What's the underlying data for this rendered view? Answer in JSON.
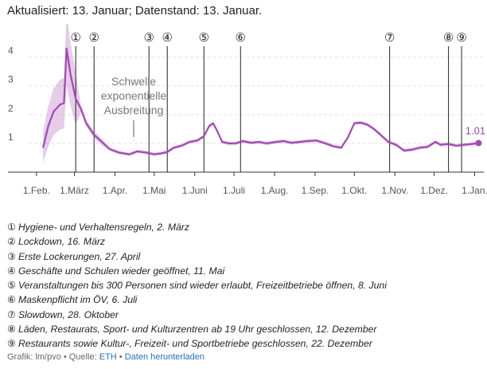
{
  "header": {
    "updated": "Aktualisiert: 13. Januar; Datenstand: 13. Januar."
  },
  "chart_data": {
    "type": "line",
    "x_ticks": [
      {
        "date": "2020-02-01",
        "label": "1.Feb."
      },
      {
        "date": "2020-03-01",
        "label": "1.März"
      },
      {
        "date": "2020-04-01",
        "label": "1.Apr."
      },
      {
        "date": "2020-05-01",
        "label": "1.Mai"
      },
      {
        "date": "2020-06-01",
        "label": "1.Juni"
      },
      {
        "date": "2020-07-01",
        "label": "1.Juli"
      },
      {
        "date": "2020-08-01",
        "label": "1.Aug."
      },
      {
        "date": "2020-09-01",
        "label": "1.Sep."
      },
      {
        "date": "2020-10-01",
        "label": "1.Okt."
      },
      {
        "date": "2020-11-01",
        "label": "1.Nov."
      },
      {
        "date": "2020-12-01",
        "label": "1.Dez."
      },
      {
        "date": "2021-01-01",
        "label": "1.Jan."
      }
    ],
    "y_ticks": [
      1,
      2,
      3,
      4
    ],
    "ylim": [
      0,
      4.6
    ],
    "xlim": [
      "2020-01-26",
      "2021-01-08"
    ],
    "grid": true,
    "threshold": {
      "value": 1,
      "label_lines": [
        "Schwelle",
        "exponentielle",
        "Ausbreitung"
      ]
    },
    "last_value_label": "1.01",
    "series": [
      {
        "color": "#a04ab0",
        "points": [
          [
            "2020-02-06",
            0.85
          ],
          [
            "2020-02-10",
            1.6
          ],
          [
            "2020-02-14",
            2.1
          ],
          [
            "2020-02-19",
            2.35
          ],
          [
            "2020-02-22",
            2.4
          ],
          [
            "2020-02-24",
            4.3
          ],
          [
            "2020-02-27",
            3.4
          ],
          [
            "2020-03-02",
            2.55
          ],
          [
            "2020-03-06",
            2.2
          ],
          [
            "2020-03-10",
            1.7
          ],
          [
            "2020-03-16",
            1.3
          ],
          [
            "2020-03-22",
            1.05
          ],
          [
            "2020-03-28",
            0.8
          ],
          [
            "2020-04-04",
            0.68
          ],
          [
            "2020-04-12",
            0.62
          ],
          [
            "2020-04-18",
            0.72
          ],
          [
            "2020-04-25",
            0.68
          ],
          [
            "2020-05-01",
            0.62
          ],
          [
            "2020-05-06",
            0.65
          ],
          [
            "2020-05-11",
            0.7
          ],
          [
            "2020-05-16",
            0.85
          ],
          [
            "2020-05-22",
            0.92
          ],
          [
            "2020-05-28",
            1.05
          ],
          [
            "2020-06-03",
            1.1
          ],
          [
            "2020-06-08",
            1.25
          ],
          [
            "2020-06-12",
            1.6
          ],
          [
            "2020-06-15",
            1.7
          ],
          [
            "2020-06-18",
            1.45
          ],
          [
            "2020-06-22",
            1.05
          ],
          [
            "2020-06-27",
            1.0
          ],
          [
            "2020-07-02",
            1.0
          ],
          [
            "2020-07-08",
            1.08
          ],
          [
            "2020-07-14",
            1.02
          ],
          [
            "2020-07-20",
            1.05
          ],
          [
            "2020-07-26",
            1.0
          ],
          [
            "2020-08-02",
            1.05
          ],
          [
            "2020-08-08",
            1.08
          ],
          [
            "2020-08-14",
            1.02
          ],
          [
            "2020-08-20",
            1.05
          ],
          [
            "2020-08-26",
            1.08
          ],
          [
            "2020-09-02",
            1.1
          ],
          [
            "2020-09-09",
            1.0
          ],
          [
            "2020-09-15",
            0.9
          ],
          [
            "2020-09-21",
            0.85
          ],
          [
            "2020-09-26",
            1.2
          ],
          [
            "2020-10-01",
            1.7
          ],
          [
            "2020-10-06",
            1.72
          ],
          [
            "2020-10-11",
            1.65
          ],
          [
            "2020-10-16",
            1.5
          ],
          [
            "2020-10-21",
            1.3
          ],
          [
            "2020-10-27",
            1.05
          ],
          [
            "2020-11-02",
            0.95
          ],
          [
            "2020-11-08",
            0.75
          ],
          [
            "2020-11-14",
            0.78
          ],
          [
            "2020-11-20",
            0.85
          ],
          [
            "2020-11-26",
            0.88
          ],
          [
            "2020-12-02",
            1.05
          ],
          [
            "2020-12-06",
            0.95
          ],
          [
            "2020-12-12",
            0.98
          ],
          [
            "2020-12-18",
            0.92
          ],
          [
            "2020-12-24",
            0.95
          ],
          [
            "2020-12-30",
            0.98
          ],
          [
            "2021-01-04",
            1.01
          ]
        ]
      }
    ],
    "events": [
      {
        "mark": "①",
        "date": "2020-03-02",
        "text": "Hygiene- und Verhaltensregeln, 2. März"
      },
      {
        "mark": "②",
        "date": "2020-03-16",
        "text": "Lockdown, 16. März"
      },
      {
        "mark": "③",
        "date": "2020-04-27",
        "text": "Erste Lockerungen, 27. April"
      },
      {
        "mark": "④",
        "date": "2020-05-11",
        "text": "Geschäfte und Schulen wieder geöffnet, 11. Mai"
      },
      {
        "mark": "⑤",
        "date": "2020-06-08",
        "text": "Veranstaltungen bis 300 Personen sind wieder erlaubt, Freizeitbetriebe öffnen, 8. Juni"
      },
      {
        "mark": "⑥",
        "date": "2020-07-06",
        "text": "Maskenpflicht im ÖV, 6. Juli"
      },
      {
        "mark": "⑦",
        "date": "2020-10-28",
        "text": "Slowdown, 28. Oktober"
      },
      {
        "mark": "⑧",
        "date": "2020-12-12",
        "text": "Läden, Restaurats, Sport- und Kulturzentren ab 19 Uhr geschlossen, 12. Dezember"
      },
      {
        "mark": "⑨",
        "date": "2020-12-22",
        "text": "Restaurants sowie Kultur-, Freizeit- und Sportbetriebe geschlossen, 22. Dezember"
      }
    ]
  },
  "footer": {
    "source_prefix": "Grafik: lm/pvo • Quelle: ",
    "source_link": "ETH",
    "separator": " • ",
    "download_link": "Daten herunterladen"
  }
}
